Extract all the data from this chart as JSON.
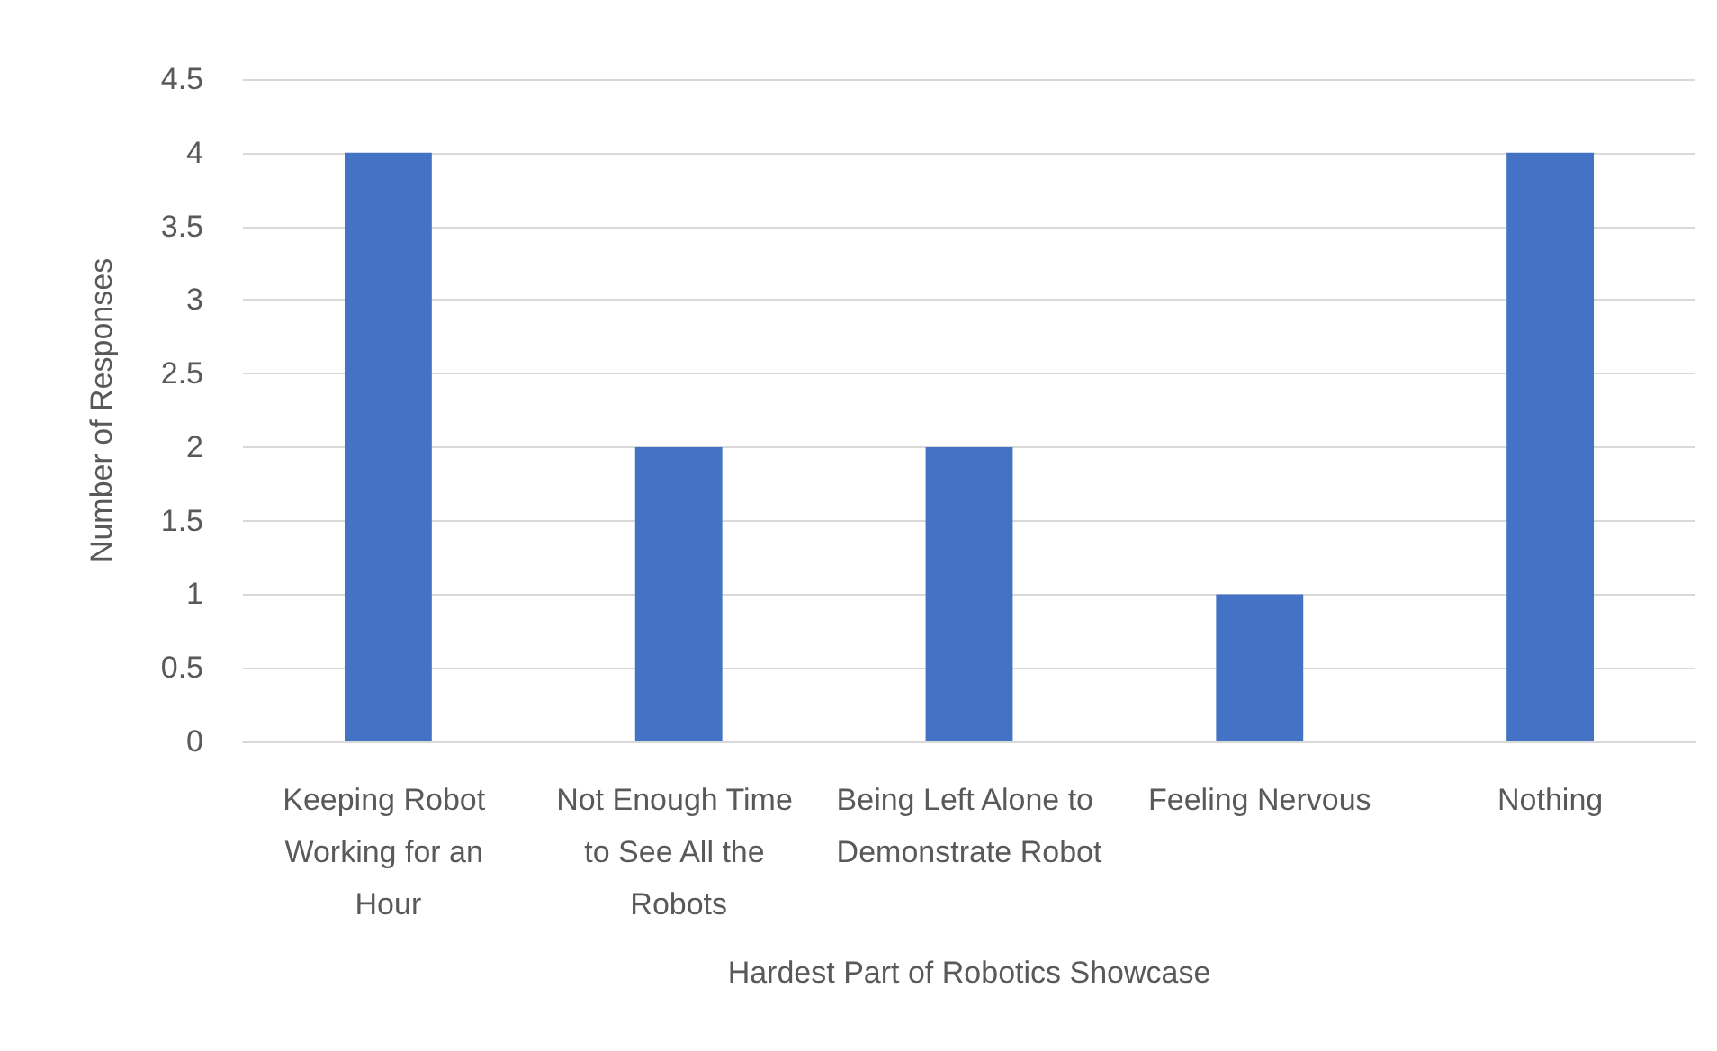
{
  "chart_data": {
    "type": "bar",
    "xlabel": "Hardest Part of Robotics Showcase",
    "ylabel": "Number of Responses",
    "categories": [
      "Keeping Robot Working for an Hour",
      "Not Enough Time to See All the Robots",
      "Being Left Alone to Demonstrate Robot",
      "Feeling Nervous",
      "Nothing"
    ],
    "values": [
      4,
      2,
      2,
      1,
      4
    ],
    "color": "#4472c4",
    "ylim": [
      0,
      4.5
    ],
    "yticks": [
      0,
      0.5,
      1,
      1.5,
      2,
      2.5,
      3,
      3.5,
      4,
      4.5
    ],
    "grid": "y"
  }
}
